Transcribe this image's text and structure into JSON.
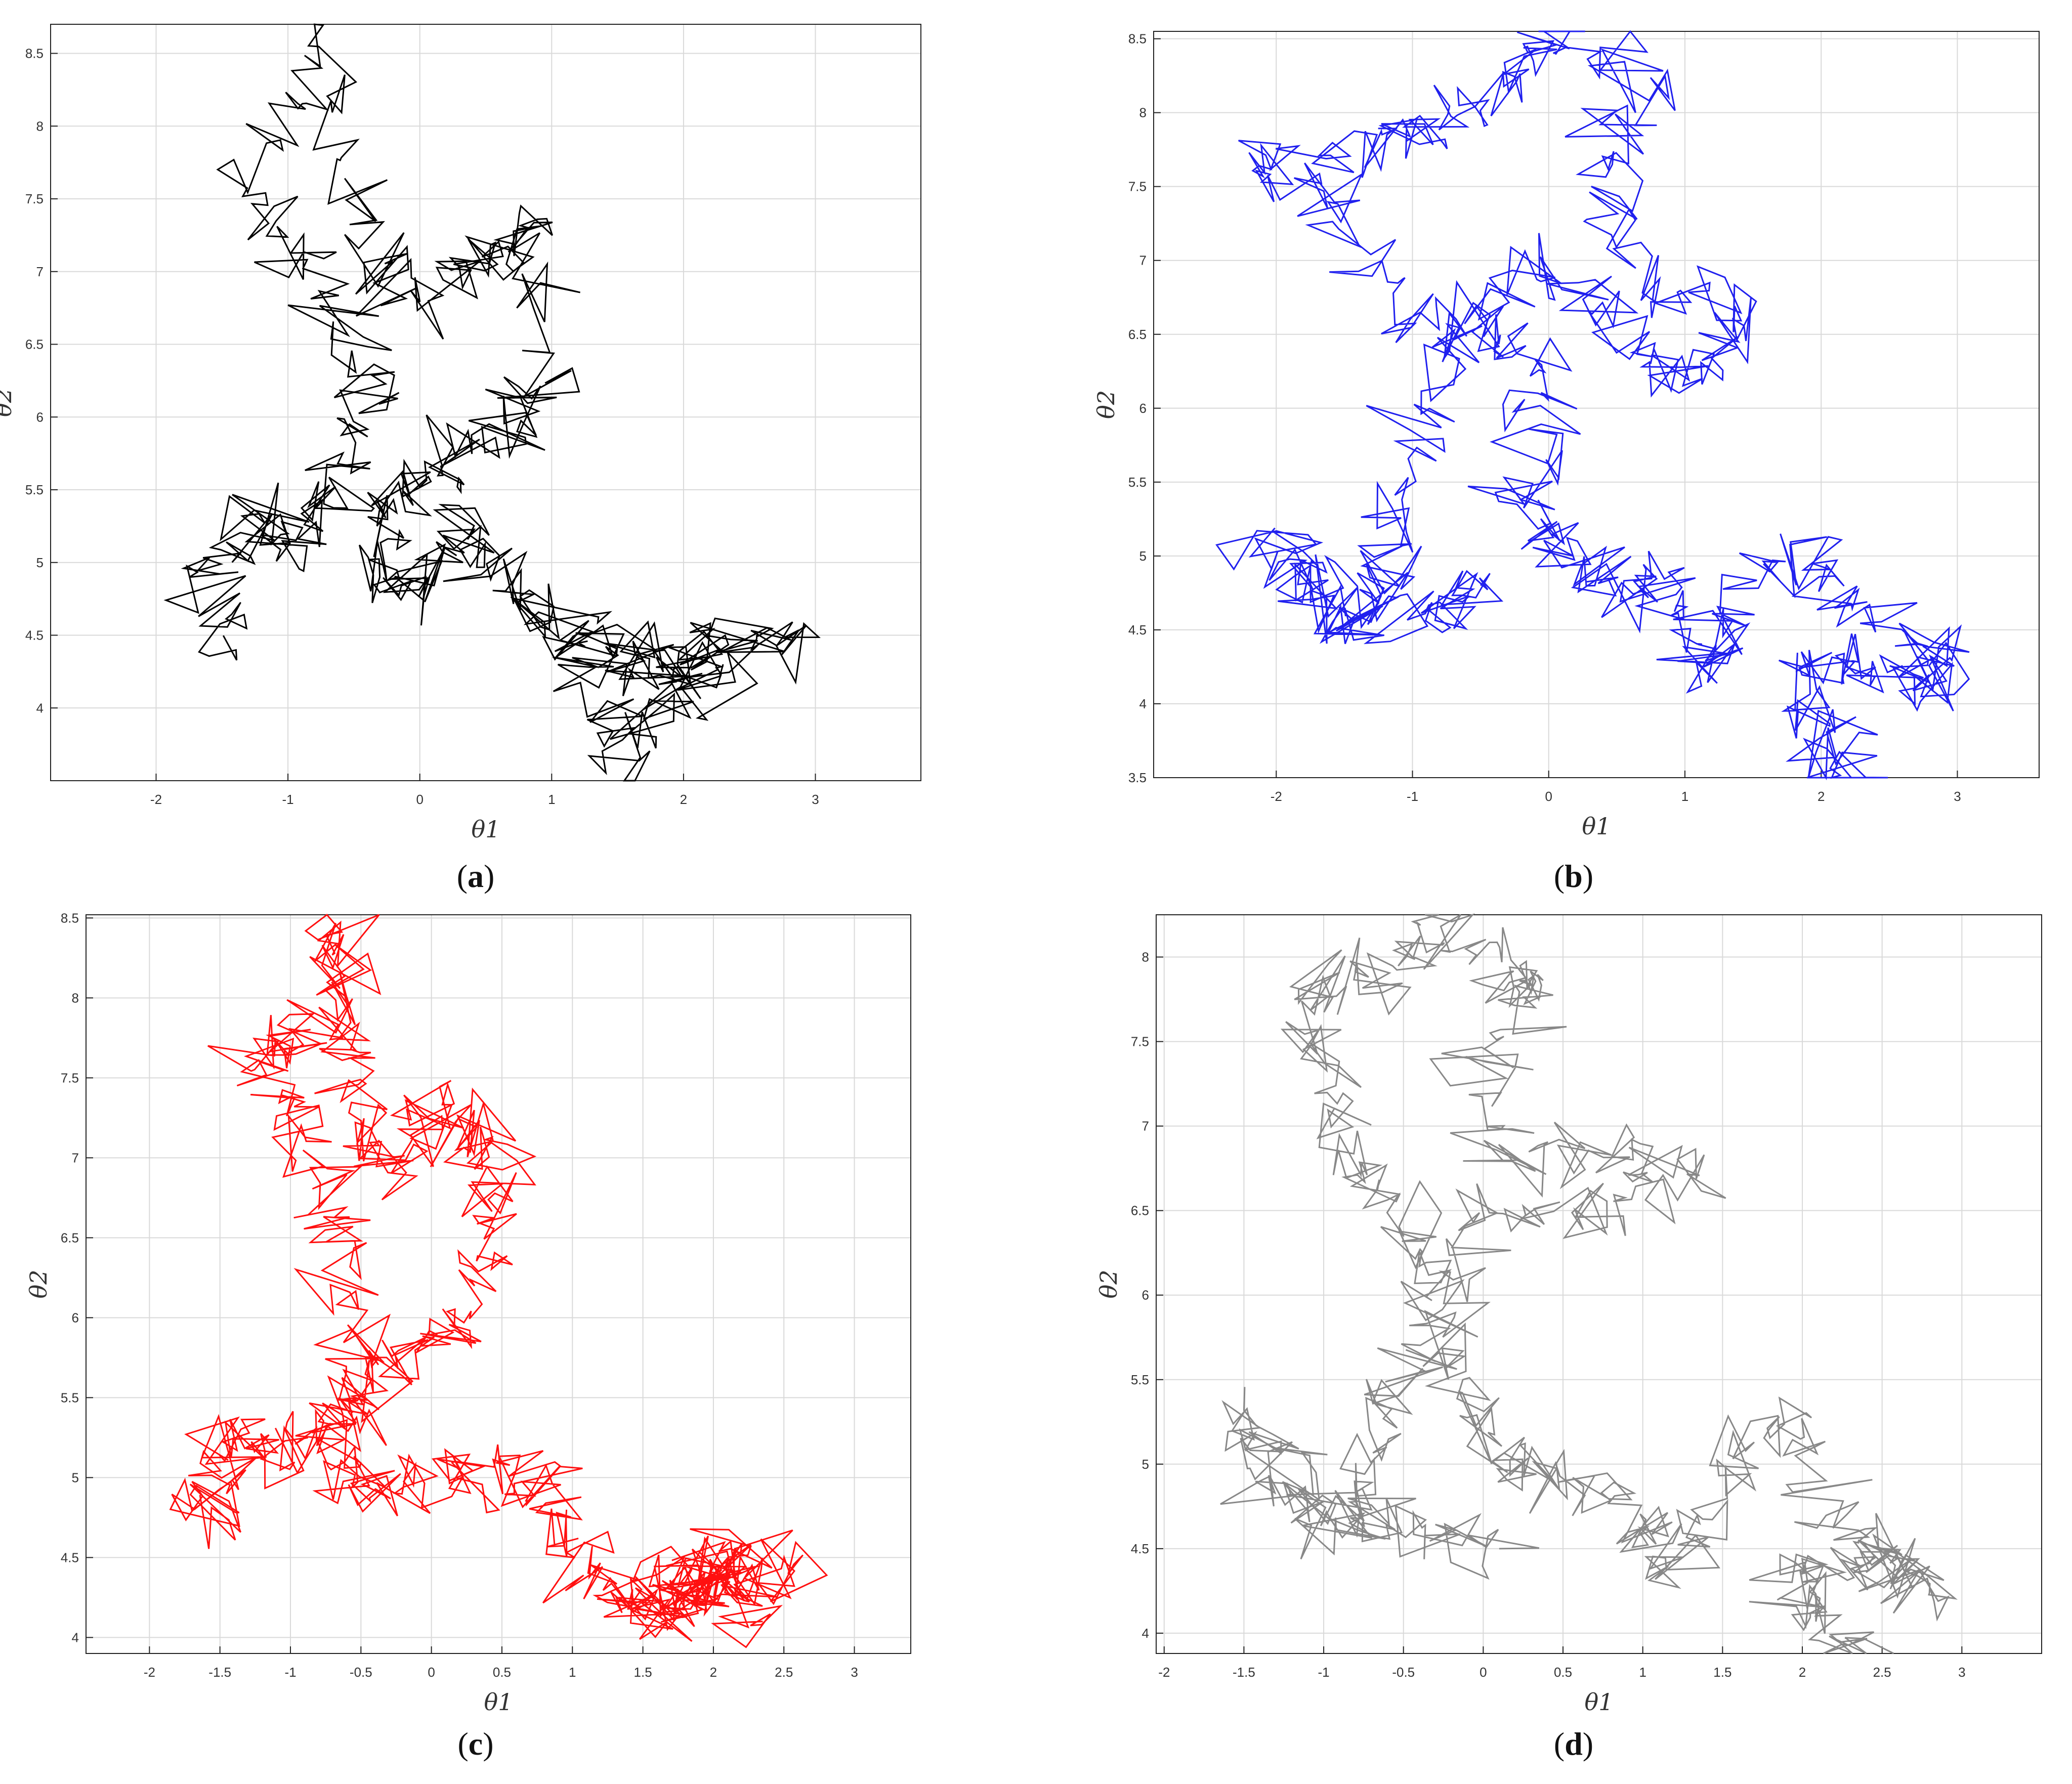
{
  "chart_data": [
    {
      "type": "line",
      "caption_letter": "a",
      "color": "#000000",
      "xlabel": "θ1",
      "ylabel": "θ2",
      "xlim": [
        -2.8,
        3.8
      ],
      "ylim": [
        3.5,
        8.7
      ],
      "xticks": [
        "-2",
        "-1",
        "0",
        "1",
        "2",
        "3"
      ],
      "xtick_values": [
        -2,
        -1,
        0,
        1,
        2,
        3
      ],
      "yticks": [
        "4",
        "4.5",
        "5",
        "5.5",
        "6",
        "6.5",
        "7",
        "7.5",
        "8",
        "8.5"
      ],
      "ytick_values": [
        4,
        4.5,
        5,
        5.5,
        6,
        6.5,
        7,
        7.5,
        8,
        8.5
      ],
      "grid": true,
      "seed": 11,
      "series": [
        {
          "waypoints": [
            [
              -1.45,
              4.35
            ],
            [
              -1.6,
              5.0
            ],
            [
              -1.2,
              5.3
            ],
            [
              -0.9,
              5.1
            ],
            [
              -0.6,
              5.6
            ],
            [
              -0.3,
              6.2
            ],
            [
              -0.8,
              6.9
            ],
            [
              -1.3,
              7.6
            ],
            [
              -0.7,
              8.6
            ],
            [
              -0.4,
              7.2
            ],
            [
              0.0,
              6.8
            ],
            [
              0.5,
              7.1
            ],
            [
              0.9,
              7.4
            ],
            [
              0.9,
              6.2
            ],
            [
              0.6,
              5.9
            ],
            [
              0.2,
              5.6
            ],
            [
              -0.2,
              5.4
            ],
            [
              -0.4,
              5.0
            ],
            [
              0.0,
              4.8
            ],
            [
              0.3,
              5.3
            ],
            [
              0.6,
              4.9
            ],
            [
              1.0,
              4.6
            ],
            [
              1.4,
              4.4
            ],
            [
              1.8,
              4.2
            ],
            [
              2.2,
              4.5
            ],
            [
              2.8,
              4.5
            ],
            [
              2.0,
              4.1
            ],
            [
              1.6,
              3.6
            ],
            [
              1.2,
              4.4
            ],
            [
              2.3,
              4.3
            ]
          ]
        }
      ]
    },
    {
      "type": "line",
      "caption_letter": "b",
      "color": "#2020ee",
      "xlabel": "θ1",
      "ylabel": "θ2",
      "xlim": [
        -2.9,
        3.6
      ],
      "ylim": [
        3.5,
        8.55
      ],
      "xticks": [
        "-2",
        "-1",
        "0",
        "1",
        "2",
        "3"
      ],
      "xtick_values": [
        -2,
        -1,
        0,
        1,
        2,
        3
      ],
      "yticks": [
        "3.5",
        "4",
        "4.5",
        "5",
        "5.5",
        "6",
        "6.5",
        "7",
        "7.5",
        "8",
        "8.5"
      ],
      "ytick_values": [
        3.5,
        4,
        4.5,
        5,
        5.5,
        6,
        6.5,
        7,
        7.5,
        8,
        8.5
      ],
      "grid": true,
      "seed": 23,
      "series": [
        {
          "waypoints": [
            [
              2.3,
              3.45
            ],
            [
              2.1,
              3.7
            ],
            [
              1.8,
              4.2
            ],
            [
              2.2,
              4.3
            ],
            [
              2.8,
              4.1
            ],
            [
              2.9,
              4.3
            ],
            [
              2.2,
              4.6
            ],
            [
              1.9,
              5.1
            ],
            [
              1.3,
              4.6
            ],
            [
              1.1,
              4.2
            ],
            [
              0.9,
              4.8
            ],
            [
              0.5,
              4.8
            ],
            [
              0.1,
              5.0
            ],
            [
              -0.2,
              5.4
            ],
            [
              0.0,
              6.0
            ],
            [
              -0.3,
              6.5
            ],
            [
              -1.0,
              6.6
            ],
            [
              -1.6,
              7.3
            ],
            [
              -2.2,
              7.7
            ],
            [
              -1.3,
              7.8
            ],
            [
              -0.8,
              7.9
            ],
            [
              -0.3,
              8.2
            ],
            [
              0.0,
              8.55
            ],
            [
              0.7,
              8.2
            ],
            [
              0.3,
              7.5
            ],
            [
              0.7,
              6.8
            ],
            [
              1.5,
              6.6
            ],
            [
              1.0,
              6.2
            ],
            [
              0.5,
              6.5
            ],
            [
              -0.1,
              7.0
            ],
            [
              -0.6,
              6.5
            ],
            [
              -1.0,
              5.6
            ],
            [
              -1.2,
              4.9
            ],
            [
              -1.5,
              4.5
            ],
            [
              -1.8,
              4.8
            ],
            [
              -2.1,
              5.1
            ],
            [
              -1.3,
              4.6
            ],
            [
              -0.8,
              4.6
            ],
            [
              -0.5,
              4.8
            ]
          ]
        }
      ]
    },
    {
      "type": "line",
      "caption_letter": "c",
      "color": "#ff1010",
      "xlabel": "θ1",
      "ylabel": "θ2",
      "xlim": [
        -2.45,
        3.4
      ],
      "ylim": [
        3.9,
        8.52
      ],
      "xticks": [
        "-2",
        "-1.5",
        "-1",
        "-0.5",
        "0",
        "0.5",
        "1",
        "1.5",
        "2",
        "2.5",
        "3"
      ],
      "xtick_values": [
        -2,
        -1.5,
        -1,
        -0.5,
        0,
        0.5,
        1,
        1.5,
        2,
        2.5,
        3
      ],
      "yticks": [
        "4",
        "4.5",
        "5",
        "5.5",
        "6",
        "6.5",
        "7",
        "7.5",
        "8",
        "8.5"
      ],
      "ytick_values": [
        4,
        4.5,
        5,
        5.5,
        6,
        6.5,
        7,
        7.5,
        8,
        8.5
      ],
      "grid": true,
      "seed": 37,
      "series": [
        {
          "waypoints": [
            [
              -1.5,
              4.7
            ],
            [
              -1.6,
              4.9
            ],
            [
              -1.4,
              5.3
            ],
            [
              -1.1,
              5.15
            ],
            [
              -0.8,
              5.3
            ],
            [
              -0.5,
              5.7
            ],
            [
              -0.7,
              6.4
            ],
            [
              -0.8,
              6.9
            ],
            [
              -1.1,
              7.4
            ],
            [
              -1.2,
              7.7
            ],
            [
              -0.8,
              7.8
            ],
            [
              -0.65,
              8.5
            ],
            [
              -0.6,
              7.9
            ],
            [
              -0.5,
              7.3
            ],
            [
              -0.3,
              6.9
            ],
            [
              0.0,
              7.3
            ],
            [
              0.3,
              7.2
            ],
            [
              0.5,
              6.9
            ],
            [
              0.4,
              6.4
            ],
            [
              0.1,
              5.9
            ],
            [
              -0.2,
              5.8
            ],
            [
              -0.5,
              5.5
            ],
            [
              -0.7,
              5.1
            ],
            [
              -0.4,
              4.9
            ],
            [
              0.0,
              5.0
            ],
            [
              0.5,
              5.05
            ],
            [
              0.8,
              4.9
            ],
            [
              1.0,
              4.5
            ],
            [
              1.3,
              4.25
            ],
            [
              1.6,
              4.1
            ],
            [
              1.9,
              4.25
            ],
            [
              2.2,
              4.55
            ],
            [
              2.0,
              4.35
            ],
            [
              1.7,
              4.35
            ],
            [
              2.55,
              4.45
            ],
            [
              2.1,
              4.3
            ],
            [
              1.5,
              4.2
            ],
            [
              1.9,
              4.35
            ],
            [
              2.35,
              4.1
            ]
          ]
        }
      ]
    },
    {
      "type": "line",
      "caption_letter": "d",
      "color": "#888888",
      "xlabel": "θ1",
      "ylabel": "θ2",
      "xlim": [
        -2.05,
        3.5
      ],
      "ylim": [
        3.88,
        8.25
      ],
      "xticks": [
        "-2",
        "-1.5",
        "-1",
        "-0.5",
        "0",
        "0.5",
        "1",
        "1.5",
        "2",
        "2.5",
        "3"
      ],
      "xtick_values": [
        -2,
        -1.5,
        -1,
        -0.5,
        0,
        0.5,
        1,
        1.5,
        2,
        2.5,
        3
      ],
      "yticks": [
        "4",
        "4.5",
        "5",
        "5.5",
        "6",
        "6.5",
        "7",
        "7.5",
        "8"
      ],
      "ytick_values": [
        4,
        4.5,
        5,
        5.5,
        6,
        6.5,
        7,
        7.5,
        8
      ],
      "grid": true,
      "seed": 53,
      "series": [
        {
          "waypoints": [
            [
              2.4,
              3.9
            ],
            [
              2.1,
              4.1
            ],
            [
              1.9,
              4.35
            ],
            [
              2.4,
              4.4
            ],
            [
              2.6,
              4.5
            ],
            [
              2.85,
              4.2
            ],
            [
              2.2,
              4.6
            ],
            [
              1.9,
              5.3
            ],
            [
              1.5,
              4.9
            ],
            [
              1.2,
              4.4
            ],
            [
              1.0,
              4.6
            ],
            [
              0.6,
              4.9
            ],
            [
              0.2,
              5.0
            ],
            [
              -0.1,
              5.4
            ],
            [
              -0.3,
              6.0
            ],
            [
              -0.5,
              6.5
            ],
            [
              -0.8,
              6.8
            ],
            [
              -1.0,
              7.3
            ],
            [
              -1.1,
              7.8
            ],
            [
              -0.6,
              7.9
            ],
            [
              -0.3,
              8.2
            ],
            [
              0.2,
              7.9
            ],
            [
              0.4,
              7.8
            ],
            [
              0.0,
              7.4
            ],
            [
              0.1,
              6.8
            ],
            [
              0.8,
              6.9
            ],
            [
              1.3,
              6.7
            ],
            [
              0.6,
              6.5
            ],
            [
              0.0,
              6.5
            ],
            [
              -0.3,
              5.8
            ],
            [
              -0.6,
              5.3
            ],
            [
              -0.8,
              4.8
            ],
            [
              -1.0,
              4.6
            ],
            [
              -1.3,
              4.9
            ],
            [
              -1.5,
              5.3
            ],
            [
              -0.9,
              4.7
            ],
            [
              -0.4,
              4.6
            ],
            [
              0.1,
              4.5
            ]
          ]
        }
      ]
    }
  ],
  "captions": {
    "a": "a",
    "b": "b",
    "c": "c",
    "d": "d"
  }
}
